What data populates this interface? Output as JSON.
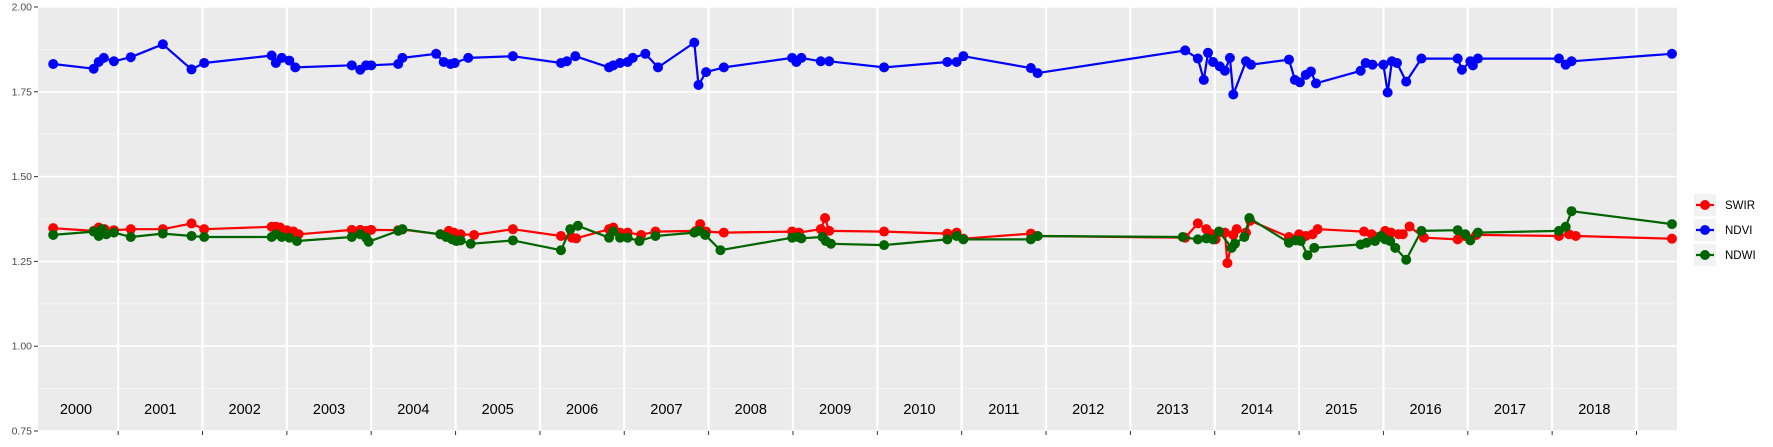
{
  "chart_data": {
    "type": "line",
    "title": "",
    "xlabel": "",
    "ylabel": "",
    "ylim": [
      0.75,
      2.0
    ],
    "xlim": [
      1999.55,
      2018.98
    ],
    "y_ticks": [
      "0.75",
      "1.00",
      "1.25",
      "1.50",
      "1.75",
      "2.00"
    ],
    "y_tick_values": [
      0.75,
      1.0,
      1.25,
      1.5,
      1.75,
      2.0
    ],
    "year_labels": [
      "2000",
      "2001",
      "2002",
      "2003",
      "2004",
      "2005",
      "2006",
      "2007",
      "2008",
      "2009",
      "2010",
      "2011",
      "2012",
      "2013",
      "2014",
      "2015",
      "2016",
      "2017",
      "2018"
    ],
    "year_boundaries": [
      2000.5,
      2001.5,
      2002.5,
      2003.5,
      2004.5,
      2005.5,
      2006.5,
      2007.5,
      2008.5,
      2009.5,
      2010.5,
      2011.5,
      2012.5,
      2013.5,
      2014.5,
      2015.5,
      2016.5,
      2017.5,
      2018.5
    ],
    "grid": true,
    "legend_position": "right",
    "background": "#EBEBEB",
    "series": [
      {
        "name": "SWIR",
        "color": "#FF0000",
        "points": [
          [
            1999.73,
            1.348
          ],
          [
            2000.21,
            1.34
          ],
          [
            2000.27,
            1.35
          ],
          [
            2000.3,
            1.335
          ],
          [
            2000.34,
            1.345
          ],
          [
            2000.45,
            1.342
          ],
          [
            2000.65,
            1.345
          ],
          [
            2001.03,
            1.345
          ],
          [
            2001.37,
            1.362
          ],
          [
            2001.52,
            1.345
          ],
          [
            2002.32,
            1.352
          ],
          [
            2002.37,
            1.352
          ],
          [
            2002.42,
            1.35
          ],
          [
            2002.5,
            1.342
          ],
          [
            2002.58,
            1.338
          ],
          [
            2002.64,
            1.33
          ],
          [
            2003.27,
            1.343
          ],
          [
            2003.37,
            1.343
          ],
          [
            2003.44,
            1.34
          ],
          [
            2003.5,
            1.343
          ],
          [
            2003.82,
            1.342
          ],
          [
            2003.87,
            1.344
          ],
          [
            2004.32,
            1.33
          ],
          [
            2004.42,
            1.34
          ],
          [
            2004.48,
            1.335
          ],
          [
            2004.56,
            1.33
          ],
          [
            2004.72,
            1.328
          ],
          [
            2005.18,
            1.345
          ],
          [
            2005.75,
            1.325
          ],
          [
            2005.88,
            1.32
          ],
          [
            2005.93,
            1.318
          ],
          [
            2006.32,
            1.345
          ],
          [
            2006.37,
            1.35
          ],
          [
            2006.45,
            1.335
          ],
          [
            2006.54,
            1.335
          ],
          [
            2006.7,
            1.328
          ],
          [
            2006.87,
            1.338
          ],
          [
            2007.35,
            1.34
          ],
          [
            2007.4,
            1.36
          ],
          [
            2007.47,
            1.338
          ],
          [
            2007.68,
            1.335
          ],
          [
            2008.49,
            1.338
          ],
          [
            2008.57,
            1.335
          ],
          [
            2008.83,
            1.345
          ],
          [
            2008.88,
            1.378
          ],
          [
            2008.93,
            1.34
          ],
          [
            2009.58,
            1.338
          ],
          [
            2010.33,
            1.332
          ],
          [
            2010.44,
            1.335
          ],
          [
            2010.52,
            1.317
          ],
          [
            2011.32,
            1.332
          ],
          [
            2011.4,
            1.325
          ],
          [
            2013.15,
            1.32
          ],
          [
            2013.3,
            1.362
          ],
          [
            2013.4,
            1.345
          ],
          [
            2013.45,
            1.332
          ],
          [
            2013.51,
            1.315
          ],
          [
            2013.62,
            1.335
          ],
          [
            2013.65,
            1.245
          ],
          [
            2013.72,
            1.328
          ],
          [
            2013.76,
            1.345
          ],
          [
            2013.87,
            1.335
          ],
          [
            2013.92,
            1.37
          ],
          [
            2014.38,
            1.322
          ],
          [
            2014.5,
            1.33
          ],
          [
            2014.58,
            1.325
          ],
          [
            2014.66,
            1.33
          ],
          [
            2014.72,
            1.345
          ],
          [
            2015.27,
            1.338
          ],
          [
            2015.36,
            1.33
          ],
          [
            2015.44,
            1.322
          ],
          [
            2015.52,
            1.34
          ],
          [
            2015.59,
            1.335
          ],
          [
            2015.68,
            1.33
          ],
          [
            2015.73,
            1.33
          ],
          [
            2015.81,
            1.353
          ],
          [
            2015.98,
            1.32
          ],
          [
            2016.38,
            1.315
          ],
          [
            2016.46,
            1.325
          ],
          [
            2016.6,
            1.328
          ],
          [
            2017.58,
            1.325
          ],
          [
            2017.7,
            1.33
          ],
          [
            2017.78,
            1.325
          ],
          [
            2018.92,
            1.317
          ]
        ]
      },
      {
        "name": "NDVI",
        "color": "#0000FF",
        "points": [
          [
            1999.73,
            1.832
          ],
          [
            2000.21,
            1.818
          ],
          [
            2000.27,
            1.838
          ],
          [
            2000.33,
            1.85
          ],
          [
            2000.45,
            1.84
          ],
          [
            2000.65,
            1.852
          ],
          [
            2001.03,
            1.89
          ],
          [
            2001.37,
            1.816
          ],
          [
            2001.52,
            1.835
          ],
          [
            2002.32,
            1.857
          ],
          [
            2002.37,
            1.835
          ],
          [
            2002.44,
            1.85
          ],
          [
            2002.53,
            1.842
          ],
          [
            2002.6,
            1.822
          ],
          [
            2003.27,
            1.828
          ],
          [
            2003.37,
            1.815
          ],
          [
            2003.44,
            1.828
          ],
          [
            2003.5,
            1.828
          ],
          [
            2003.82,
            1.832
          ],
          [
            2003.87,
            1.85
          ],
          [
            2004.27,
            1.862
          ],
          [
            2004.36,
            1.838
          ],
          [
            2004.44,
            1.832
          ],
          [
            2004.49,
            1.835
          ],
          [
            2004.65,
            1.85
          ],
          [
            2005.18,
            1.855
          ],
          [
            2005.75,
            1.835
          ],
          [
            2005.82,
            1.84
          ],
          [
            2005.92,
            1.855
          ],
          [
            2006.32,
            1.822
          ],
          [
            2006.37,
            1.828
          ],
          [
            2006.45,
            1.835
          ],
          [
            2006.54,
            1.838
          ],
          [
            2006.6,
            1.85
          ],
          [
            2006.75,
            1.862
          ],
          [
            2006.9,
            1.822
          ],
          [
            2007.33,
            1.895
          ],
          [
            2007.38,
            1.77
          ],
          [
            2007.47,
            1.808
          ],
          [
            2007.68,
            1.822
          ],
          [
            2008.49,
            1.85
          ],
          [
            2008.54,
            1.838
          ],
          [
            2008.6,
            1.85
          ],
          [
            2008.83,
            1.84
          ],
          [
            2008.93,
            1.84
          ],
          [
            2009.58,
            1.822
          ],
          [
            2010.33,
            1.838
          ],
          [
            2010.44,
            1.838
          ],
          [
            2010.52,
            1.855
          ],
          [
            2011.32,
            1.82
          ],
          [
            2011.4,
            1.805
          ],
          [
            2013.15,
            1.872
          ],
          [
            2013.3,
            1.848
          ],
          [
            2013.37,
            1.785
          ],
          [
            2013.42,
            1.865
          ],
          [
            2013.48,
            1.838
          ],
          [
            2013.56,
            1.825
          ],
          [
            2013.62,
            1.812
          ],
          [
            2013.68,
            1.85
          ],
          [
            2013.72,
            1.742
          ],
          [
            2013.87,
            1.84
          ],
          [
            2013.93,
            1.83
          ],
          [
            2014.38,
            1.845
          ],
          [
            2014.45,
            1.785
          ],
          [
            2014.51,
            1.778
          ],
          [
            2014.58,
            1.8
          ],
          [
            2014.64,
            1.81
          ],
          [
            2014.7,
            1.775
          ],
          [
            2015.23,
            1.812
          ],
          [
            2015.29,
            1.835
          ],
          [
            2015.37,
            1.83
          ],
          [
            2015.5,
            1.83
          ],
          [
            2015.55,
            1.748
          ],
          [
            2015.6,
            1.84
          ],
          [
            2015.66,
            1.835
          ],
          [
            2015.77,
            1.78
          ],
          [
            2015.95,
            1.848
          ],
          [
            2016.38,
            1.848
          ],
          [
            2016.43,
            1.815
          ],
          [
            2016.53,
            1.84
          ],
          [
            2016.56,
            1.828
          ],
          [
            2016.62,
            1.848
          ],
          [
            2017.58,
            1.848
          ],
          [
            2017.66,
            1.83
          ],
          [
            2017.73,
            1.84
          ],
          [
            2018.92,
            1.862
          ]
        ]
      },
      {
        "name": "NDWI",
        "color": "#006400",
        "points": [
          [
            1999.73,
            1.328
          ],
          [
            2000.21,
            1.338
          ],
          [
            2000.27,
            1.325
          ],
          [
            2000.31,
            1.345
          ],
          [
            2000.36,
            1.33
          ],
          [
            2000.45,
            1.335
          ],
          [
            2000.65,
            1.322
          ],
          [
            2001.03,
            1.332
          ],
          [
            2001.37,
            1.325
          ],
          [
            2001.52,
            1.322
          ],
          [
            2002.32,
            1.322
          ],
          [
            2002.37,
            1.33
          ],
          [
            2002.44,
            1.322
          ],
          [
            2002.53,
            1.32
          ],
          [
            2002.62,
            1.31
          ],
          [
            2003.27,
            1.322
          ],
          [
            2003.37,
            1.33
          ],
          [
            2003.44,
            1.32
          ],
          [
            2003.47,
            1.308
          ],
          [
            2003.82,
            1.34
          ],
          [
            2003.87,
            1.345
          ],
          [
            2004.32,
            1.33
          ],
          [
            2004.39,
            1.322
          ],
          [
            2004.46,
            1.315
          ],
          [
            2004.51,
            1.31
          ],
          [
            2004.56,
            1.312
          ],
          [
            2004.68,
            1.302
          ],
          [
            2005.18,
            1.312
          ],
          [
            2005.75,
            1.283
          ],
          [
            2005.86,
            1.345
          ],
          [
            2005.95,
            1.355
          ],
          [
            2006.32,
            1.32
          ],
          [
            2006.37,
            1.338
          ],
          [
            2006.45,
            1.32
          ],
          [
            2006.54,
            1.32
          ],
          [
            2006.68,
            1.31
          ],
          [
            2006.87,
            1.325
          ],
          [
            2007.33,
            1.335
          ],
          [
            2007.39,
            1.34
          ],
          [
            2007.46,
            1.328
          ],
          [
            2007.64,
            1.283
          ],
          [
            2008.49,
            1.32
          ],
          [
            2008.56,
            1.322
          ],
          [
            2008.6,
            1.318
          ],
          [
            2008.85,
            1.322
          ],
          [
            2008.89,
            1.31
          ],
          [
            2008.95,
            1.302
          ],
          [
            2009.58,
            1.298
          ],
          [
            2010.33,
            1.315
          ],
          [
            2010.44,
            1.325
          ],
          [
            2010.52,
            1.315
          ],
          [
            2011.32,
            1.315
          ],
          [
            2011.4,
            1.325
          ],
          [
            2013.12,
            1.322
          ],
          [
            2013.3,
            1.315
          ],
          [
            2013.4,
            1.318
          ],
          [
            2013.48,
            1.315
          ],
          [
            2013.55,
            1.338
          ],
          [
            2013.7,
            1.29
          ],
          [
            2013.74,
            1.302
          ],
          [
            2013.85,
            1.322
          ],
          [
            2013.91,
            1.378
          ],
          [
            2014.38,
            1.305
          ],
          [
            2014.46,
            1.312
          ],
          [
            2014.52,
            1.31
          ],
          [
            2014.6,
            1.268
          ],
          [
            2014.68,
            1.29
          ],
          [
            2015.23,
            1.3
          ],
          [
            2015.3,
            1.305
          ],
          [
            2015.4,
            1.31
          ],
          [
            2015.47,
            1.325
          ],
          [
            2015.52,
            1.315
          ],
          [
            2015.58,
            1.31
          ],
          [
            2015.64,
            1.29
          ],
          [
            2015.77,
            1.255
          ],
          [
            2015.95,
            1.34
          ],
          [
            2016.38,
            1.342
          ],
          [
            2016.47,
            1.33
          ],
          [
            2016.53,
            1.312
          ],
          [
            2016.62,
            1.335
          ],
          [
            2017.58,
            1.34
          ],
          [
            2017.66,
            1.352
          ],
          [
            2017.73,
            1.398
          ],
          [
            2018.92,
            1.36
          ]
        ]
      }
    ]
  }
}
